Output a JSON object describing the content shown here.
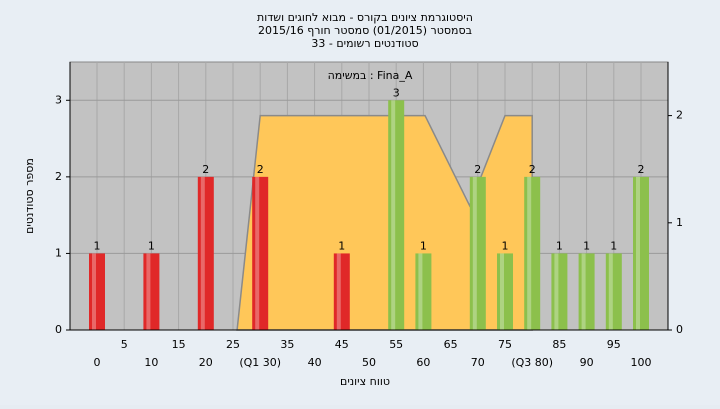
{
  "chart_data": {
    "type": "bar",
    "title_lines": [
      "היסטוגרמת ציונים בקורס - מבוא לחוגים ושדות",
      "בסמסטר (01/2015) סמסטר חורף 2015/16",
      "סטודנטים רשומים - 33"
    ],
    "annotation": "במשימה : Fina_A",
    "x_label": "טווח ציונים",
    "y_label": "מספר סטודנטים",
    "categories": [
      "0",
      "5",
      "10",
      "15",
      "20",
      "25",
      "(Q1 30)",
      "35",
      "40",
      "45",
      "50",
      "55",
      "60",
      "65",
      "70",
      "75",
      "(Q3 80)",
      "85",
      "90",
      "95",
      "100"
    ],
    "values": [
      1,
      null,
      1,
      null,
      2,
      null,
      2,
      null,
      null,
      1,
      null,
      3,
      1,
      null,
      2,
      1,
      2,
      1,
      1,
      1,
      2
    ],
    "colors": [
      "#e02828",
      null,
      "#e02828",
      null,
      "#e02828",
      null,
      "#e02828",
      null,
      null,
      "#e02828",
      null,
      "#8cc04c",
      "#8cc04c",
      null,
      "#8cc04c",
      "#8cc04c",
      "#8cc04c",
      "#8cc04c",
      "#8cc04c",
      "#8cc04c",
      "#8cc04c"
    ],
    "ylim": [
      0,
      3.5
    ],
    "yticks": [
      0,
      1,
      2,
      3
    ],
    "y2lim": [
      0,
      2.5
    ],
    "y2ticks": [
      0,
      1,
      2
    ],
    "area": {
      "axis": "y2",
      "color": "#ffc759",
      "x": [
        5.15,
        6,
        12.06,
        13.7,
        15,
        16,
        16
      ],
      "values": [
        0,
        2,
        2,
        1.16,
        2,
        2,
        0
      ]
    },
    "grid": true
  }
}
